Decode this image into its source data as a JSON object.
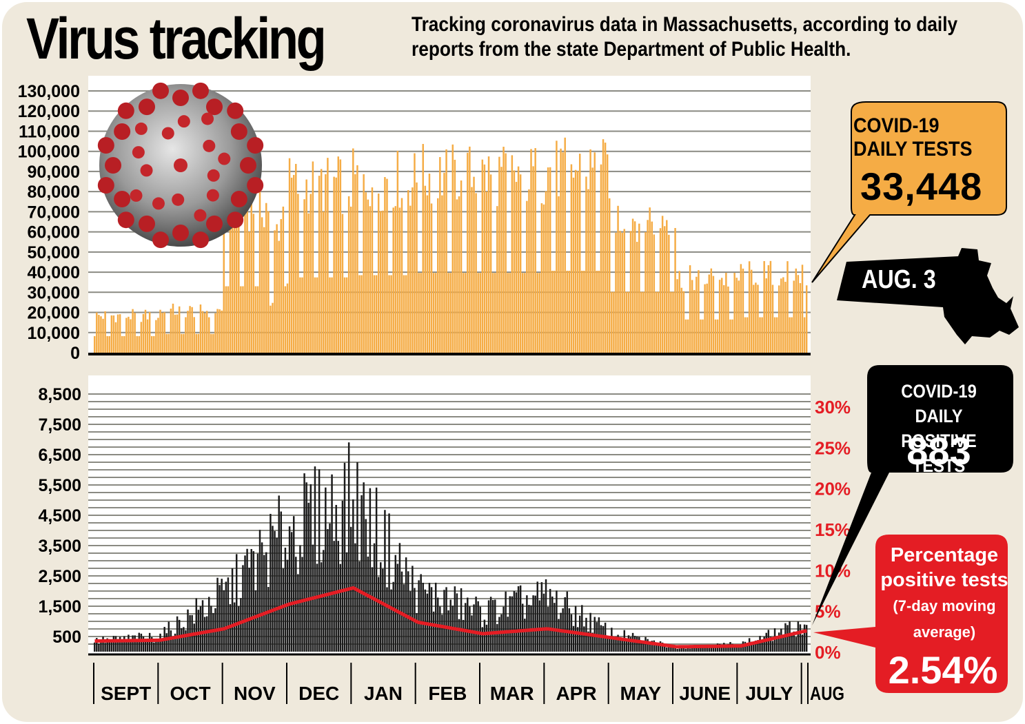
{
  "title": "Virus tracking",
  "subtitle": "Tracking coronavirus data in Massachusetts, according to daily reports from the state Department of Public Health.",
  "colors": {
    "background": "#efe9dc",
    "tests_bar": "#f5ac45",
    "positive_bar": "#1a1a1a",
    "percent_line": "#e41d24",
    "callout_tests": "#f5ac45",
    "callout_positive": "#000000",
    "callout_percent": "#e41d24"
  },
  "callouts": {
    "tests": {
      "label": "COVID-19 DAILY TESTS",
      "value": "33,448"
    },
    "date": {
      "label": "AUG. 3"
    },
    "positive": {
      "label": "COVID-19 DAILY POSITIVE TESTS",
      "value": "883"
    },
    "percent": {
      "label": "Percentage positive tests",
      "note": "(7-day moving average)",
      "value": "2.54%"
    }
  },
  "chart_data": [
    {
      "type": "bar",
      "title": "COVID-19 DAILY TESTS",
      "ylim": [
        0,
        130000
      ],
      "yticks": [
        {
          "value": 130000,
          "label": "130,000"
        },
        {
          "value": 120000,
          "label": "120,000"
        },
        {
          "value": 110000,
          "label": "110,000"
        },
        {
          "value": 100000,
          "label": "100,000"
        },
        {
          "value": 90000,
          "label": "90,000"
        },
        {
          "value": 80000,
          "label": "80,000"
        },
        {
          "value": 70000,
          "label": "70,000"
        },
        {
          "value": 60000,
          "label": "60,000"
        },
        {
          "value": 50000,
          "label": "50,000"
        },
        {
          "value": 40000,
          "label": "40,000"
        },
        {
          "value": 30000,
          "label": "30,000"
        },
        {
          "value": 20000,
          "label": "20,000"
        },
        {
          "value": 10000,
          "label": "10,000"
        },
        {
          "value": 0,
          "label": "0"
        }
      ],
      "grid": true,
      "daily_range": [
        "SEPT 1",
        "AUG 3"
      ],
      "monthly_avg_tests": [
        {
          "month": "SEPT",
          "value": 15000
        },
        {
          "month": "OCT",
          "value": 17000
        },
        {
          "month": "NOV",
          "value": 60000
        },
        {
          "month": "DEC",
          "value": 68000
        },
        {
          "month": "JAN",
          "value": 70000
        },
        {
          "month": "FEB",
          "value": 72000
        },
        {
          "month": "MAR",
          "value": 72000
        },
        {
          "month": "APR",
          "value": 74000
        },
        {
          "month": "MAY",
          "value": 55000
        },
        {
          "month": "JUNE",
          "value": 30000
        },
        {
          "month": "JULY",
          "value": 32000
        },
        {
          "month": "AUG",
          "value": 33448
        }
      ]
    },
    {
      "type": "bar",
      "title": "COVID-19 DAILY POSITIVE TESTS",
      "ylim": [
        0,
        8500
      ],
      "yticks": [
        {
          "value": 8500,
          "label": "8,500"
        },
        {
          "value": 7500,
          "label": "7,500"
        },
        {
          "value": 6500,
          "label": "6,500"
        },
        {
          "value": 5500,
          "label": "5,500"
        },
        {
          "value": 4500,
          "label": "4,500"
        },
        {
          "value": 3500,
          "label": "3,500"
        },
        {
          "value": 2500,
          "label": "2,500"
        },
        {
          "value": 1500,
          "label": "1,500"
        },
        {
          "value": 500,
          "label": "500"
        }
      ],
      "y2lim": [
        0,
        30
      ],
      "y2ticks": [
        {
          "value": 30,
          "label": "30%"
        },
        {
          "value": 25,
          "label": "25%"
        },
        {
          "value": 20,
          "label": "20%"
        },
        {
          "value": 15,
          "label": "15%"
        },
        {
          "value": 10,
          "label": "10%"
        },
        {
          "value": 5,
          "label": "5%"
        },
        {
          "value": 0,
          "label": "0%"
        }
      ],
      "grid": true,
      "categories": [
        "SEPT",
        "OCT",
        "NOV",
        "DEC",
        "JAN",
        "FEB",
        "MAR",
        "APR",
        "MAY",
        "JUNE",
        "JULY",
        "AUG"
      ],
      "series": [
        {
          "name": "Daily positive tests (monthly typical)",
          "values": [
            350,
            500,
            1900,
            4000,
            5000,
            2000,
            1300,
            1800,
            600,
            150,
            250,
            883
          ]
        },
        {
          "name": "Percentage positive tests (7-day moving average)",
          "axis": "right",
          "values": [
            1.3,
            1.4,
            2.8,
            5.8,
            7.8,
            3.6,
            2.2,
            2.8,
            1.7,
            0.6,
            0.7,
            2.54
          ]
        }
      ],
      "xlabel": ""
    }
  ]
}
